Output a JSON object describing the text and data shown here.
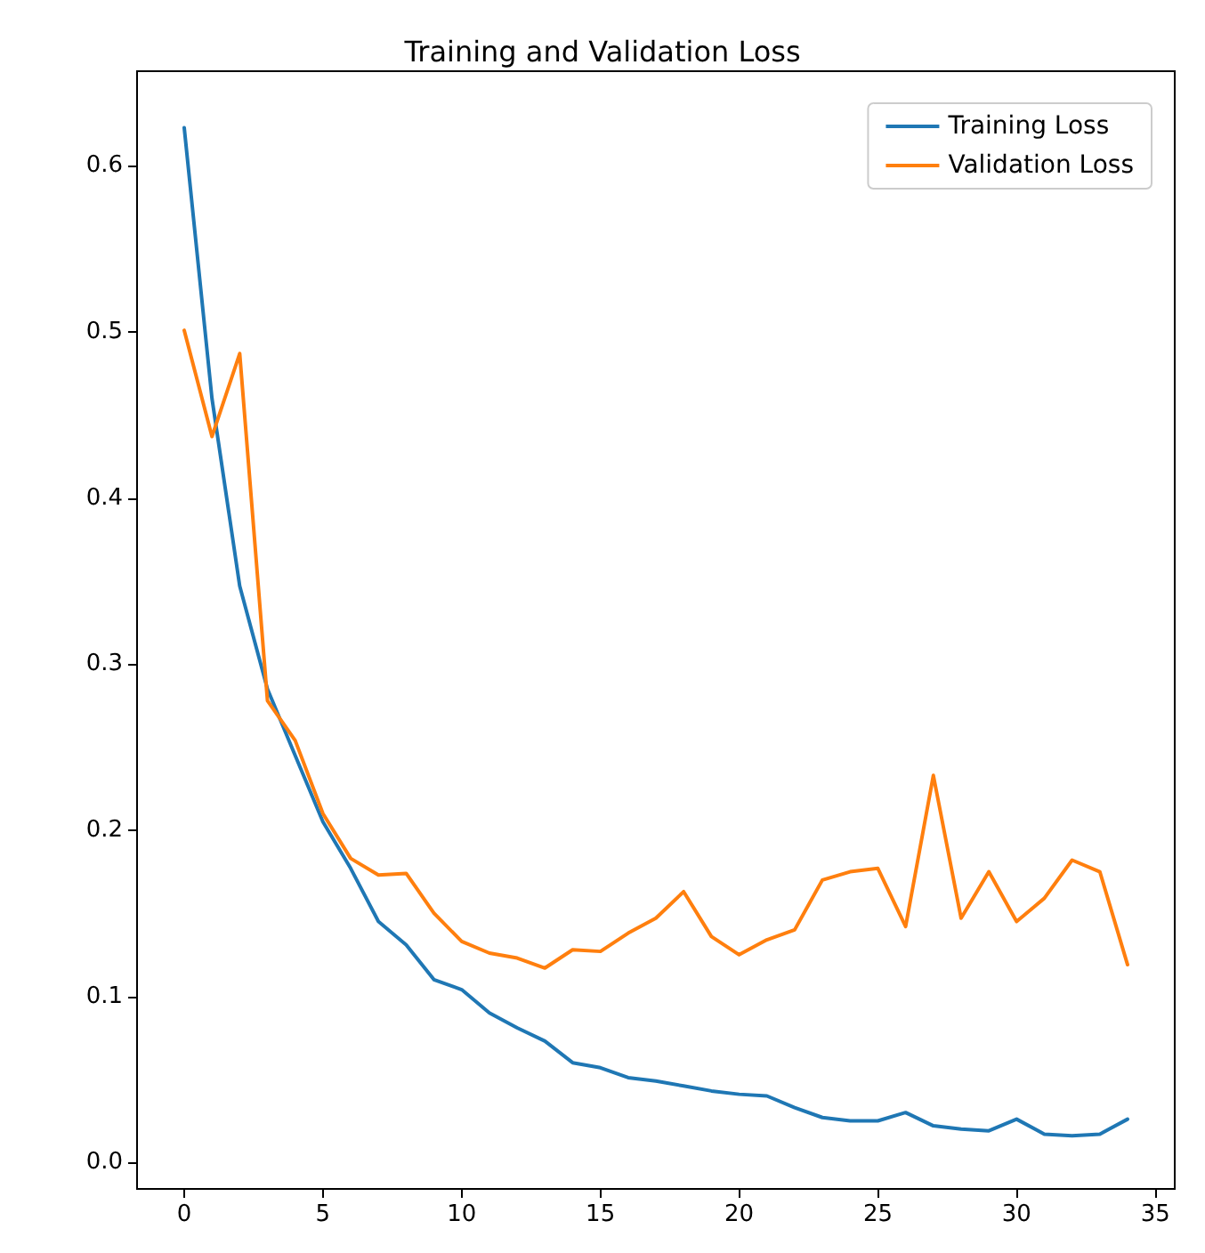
{
  "chart_data": {
    "type": "line",
    "title": "Training and Validation Loss",
    "x": [
      0,
      1,
      2,
      3,
      4,
      5,
      6,
      7,
      8,
      9,
      10,
      11,
      12,
      13,
      14,
      15,
      16,
      17,
      18,
      19,
      20,
      21,
      22,
      23,
      24,
      25,
      26,
      27,
      28,
      29,
      30,
      31,
      32,
      33,
      34
    ],
    "series": [
      {
        "name": "Training Loss",
        "color": "#1f77b4",
        "values": [
          0.623,
          0.46,
          0.347,
          0.285,
          0.245,
          0.205,
          0.177,
          0.145,
          0.131,
          0.11,
          0.104,
          0.09,
          0.081,
          0.073,
          0.06,
          0.057,
          0.051,
          0.049,
          0.046,
          0.043,
          0.041,
          0.04,
          0.033,
          0.027,
          0.025,
          0.025,
          0.03,
          0.022,
          0.02,
          0.019,
          0.026,
          0.017,
          0.016,
          0.017,
          0.026
        ]
      },
      {
        "name": "Validation Loss",
        "color": "#ff7f0e",
        "values": [
          0.501,
          0.437,
          0.487,
          0.278,
          0.254,
          0.21,
          0.183,
          0.173,
          0.174,
          0.15,
          0.133,
          0.126,
          0.123,
          0.117,
          0.128,
          0.127,
          0.138,
          0.147,
          0.163,
          0.136,
          0.125,
          0.134,
          0.14,
          0.17,
          0.175,
          0.177,
          0.142,
          0.233,
          0.147,
          0.175,
          0.145,
          0.159,
          0.182,
          0.175,
          0.119
        ]
      }
    ],
    "xlim": [
      -1.7,
      35.7
    ],
    "xticks": [
      0,
      5,
      10,
      15,
      20,
      25,
      30,
      35
    ],
    "ylim": [
      -0.016,
      0.657
    ],
    "yticks": [
      {
        "value": 0,
        "label": "0.0"
      },
      0.1,
      0.2,
      0.3,
      0.4,
      0.5,
      0.6
    ],
    "grid": false,
    "legend": "top right",
    "marker": "none",
    "line_style": "solid"
  }
}
